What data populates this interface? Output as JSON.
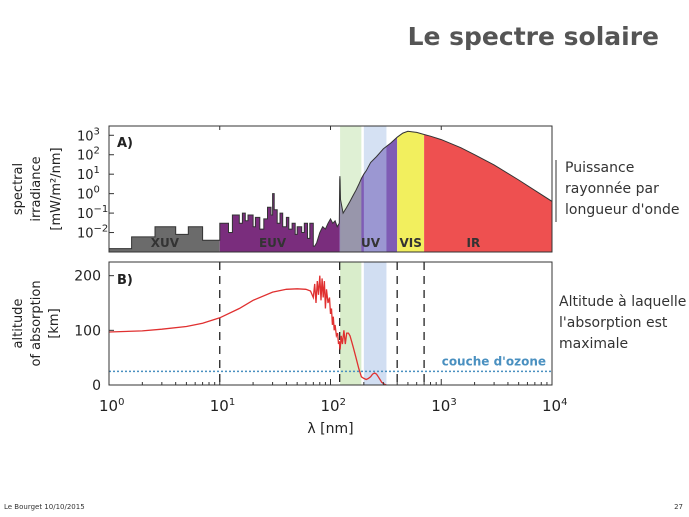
{
  "slide": {
    "title": "Le spectre solaire",
    "annotation_a": [
      "Puissance",
      "rayonnée par",
      "longueur d'onde"
    ],
    "annotation_b": [
      "Altitude à laquelle",
      "l'absorption est",
      "maximale"
    ],
    "footer_left": "Le Bourget 10/10/2015",
    "footer_right": "27"
  },
  "colors": {
    "xuv": "#6b6b6b",
    "euv": "#7a2d7d",
    "uv": "#7f5cb5",
    "vis": "#f2ef5e",
    "ir": "#ee5050",
    "band_green": "#b9dea0",
    "band_blue": "#b3c8ea",
    "absorption_curve": "#e03030",
    "ozone": "#4a90c0"
  },
  "chart_data": [
    {
      "id": "A",
      "type": "area",
      "panel_label": "A)",
      "ylabel": [
        "spectral",
        "irradiance",
        "[mW/m²/nm]"
      ],
      "x_scale": "log",
      "y_scale": "log",
      "xlim": [
        1,
        10000
      ],
      "ylim": [
        0.001,
        3000
      ],
      "yticks": [
        {
          "value": 1000,
          "base": "10",
          "exp": "3"
        },
        {
          "value": 100,
          "base": "10",
          "exp": "2"
        },
        {
          "value": 10,
          "base": "10",
          "exp": "1"
        },
        {
          "value": 1,
          "base": "10",
          "exp": "0"
        },
        {
          "value": 0.1,
          "base": "10",
          "exp": "−1"
        },
        {
          "value": 0.01,
          "base": "10",
          "exp": "−2"
        }
      ],
      "bands": [
        {
          "name": "XUV",
          "from": 1,
          "to": 10
        },
        {
          "name": "EUV",
          "from": 10,
          "to": 121
        },
        {
          "name": "UV",
          "from": 121,
          "to": 400
        },
        {
          "name": "VIS",
          "from": 400,
          "to": 700
        },
        {
          "name": "IR",
          "from": 700,
          "to": 10000
        }
      ],
      "highlight_bands": [
        {
          "from": 122,
          "to": 190,
          "color": "green"
        },
        {
          "from": 200,
          "to": 320,
          "color": "blue"
        }
      ],
      "series": [
        {
          "x": [
            1,
            1.6,
            1.6,
            2.6,
            2.6,
            4.0,
            4.0,
            5.2,
            5.2,
            7.0,
            7.0,
            10,
            10,
            12,
            12,
            13,
            13,
            15,
            15,
            16,
            16,
            17,
            17,
            18,
            18,
            20,
            20,
            21,
            21,
            23,
            23,
            25,
            25,
            27,
            27,
            29,
            29,
            30,
            30,
            31,
            31,
            33,
            33,
            35,
            35,
            37,
            37,
            40,
            40,
            42,
            42,
            45,
            45,
            48,
            48,
            50,
            50,
            55,
            55,
            58,
            58,
            62,
            62,
            65,
            65,
            70,
            70,
            72,
            75,
            80,
            85,
            90,
            95,
            100,
            105,
            110,
            115,
            120,
            121,
            121.6,
            122,
            123,
            130,
            140,
            150,
            160,
            170,
            180,
            190,
            200,
            210,
            230,
            260,
            300,
            350,
            400,
            450,
            500,
            550,
            600,
            700,
            800,
            1000,
            1500,
            2000,
            3000,
            5000,
            10000
          ],
          "values": [
            0.0015,
            0.0015,
            0.006,
            0.006,
            0.02,
            0.02,
            0.008,
            0.008,
            0.02,
            0.02,
            0.004,
            0.004,
            0.03,
            0.03,
            0.01,
            0.01,
            0.08,
            0.08,
            0.03,
            0.03,
            0.1,
            0.1,
            0.04,
            0.04,
            0.08,
            0.08,
            0.02,
            0.02,
            0.06,
            0.06,
            0.015,
            0.015,
            0.05,
            0.05,
            0.2,
            0.2,
            0.08,
            0.08,
            1.0,
            1.0,
            0.15,
            0.15,
            0.03,
            0.03,
            0.1,
            0.1,
            0.02,
            0.02,
            0.06,
            0.06,
            0.015,
            0.015,
            0.03,
            0.03,
            0.008,
            0.008,
            0.02,
            0.02,
            0.01,
            0.01,
            0.03,
            0.03,
            0.005,
            0.005,
            0.03,
            0.03,
            0.002,
            0.002,
            0.003,
            0.01,
            0.02,
            0.015,
            0.03,
            0.05,
            0.03,
            0.04,
            0.02,
            0.03,
            5,
            8,
            5,
            0.5,
            0.1,
            0.2,
            0.4,
            0.8,
            1.5,
            3,
            6,
            10,
            15,
            40,
            80,
            200,
            400,
            800,
            1300,
            1600,
            1500,
            1400,
            1100,
            900,
            600,
            230,
            100,
            30,
            5,
            0.4
          ]
        }
      ]
    },
    {
      "id": "B",
      "type": "line",
      "panel_label": "B)",
      "ylabel": [
        "altitude",
        "of absorption",
        "[km]"
      ],
      "xlabel": "λ [nm]",
      "x_scale": "log",
      "xlim": [
        1,
        10000
      ],
      "ylim": [
        0,
        225
      ],
      "yticks": [
        0,
        100,
        200
      ],
      "xticks": [
        {
          "value": 1,
          "base": "10",
          "exp": "0"
        },
        {
          "value": 10,
          "base": "10",
          "exp": "1"
        },
        {
          "value": 100,
          "base": "10",
          "exp": "2"
        },
        {
          "value": 1000,
          "base": "10",
          "exp": "3"
        },
        {
          "value": 10000,
          "base": "10",
          "exp": "4"
        }
      ],
      "dashed_verticals": [
        10,
        121,
        400,
        700
      ],
      "ozone_level": {
        "label": "couche d'ozone",
        "altitude": 25
      },
      "series": [
        {
          "x": [
            1,
            2,
            3,
            5,
            7,
            10,
            15,
            20,
            30,
            40,
            50,
            60,
            66,
            70,
            72,
            74,
            76,
            78,
            80,
            82,
            84,
            86,
            88,
            90,
            92,
            95,
            98,
            100,
            102,
            104,
            106,
            108,
            110,
            113,
            116,
            118,
            120,
            121,
            122,
            125,
            128,
            132,
            136,
            140,
            145,
            150,
            155,
            160,
            170,
            180,
            190,
            200,
            210,
            220,
            230,
            240,
            250,
            260,
            270,
            280,
            290,
            300,
            310,
            320
          ],
          "values": [
            97,
            99,
            102,
            107,
            113,
            123,
            140,
            155,
            170,
            175,
            176,
            175,
            172,
            160,
            185,
            150,
            190,
            165,
            200,
            155,
            195,
            160,
            190,
            140,
            175,
            150,
            160,
            130,
            140,
            110,
            125,
            100,
            110,
            90,
            95,
            75,
            80,
            70,
            65,
            90,
            75,
            100,
            75,
            95,
            95,
            90,
            80,
            70,
            50,
            30,
            15,
            12,
            10,
            12,
            15,
            20,
            22,
            20,
            15,
            10,
            5,
            3,
            1,
            0
          ]
        }
      ]
    }
  ]
}
